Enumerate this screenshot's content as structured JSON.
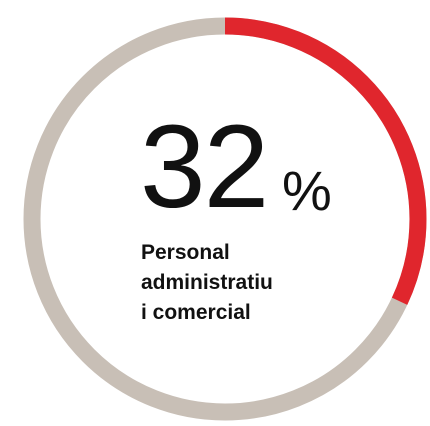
{
  "chart_data": {
    "type": "pie",
    "subtype": "donut",
    "value": 32,
    "unit": "%",
    "label_lines": [
      "Personal",
      "administratiu",
      "i comercial"
    ],
    "colors": {
      "highlight": "#e0262d",
      "remainder": "#c8bfb6",
      "text": "#111111"
    }
  }
}
